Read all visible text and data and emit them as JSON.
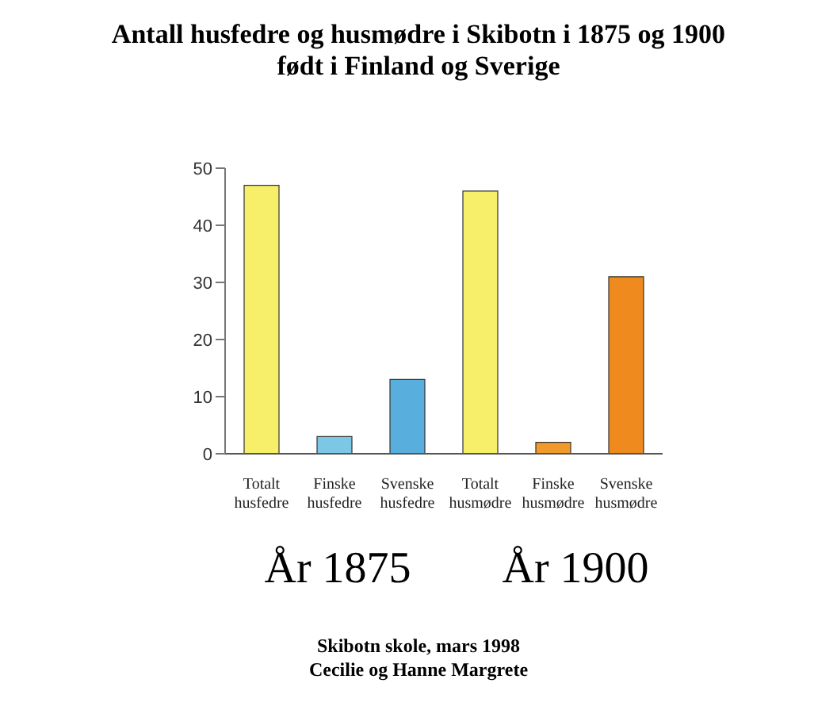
{
  "chart_data": {
    "type": "bar",
    "title": "Antall husfedre og husmødre i Skibotn i 1875 og 1900\nfødt i Finland og Sverige",
    "categories": [
      "Totalt husfedre",
      "Finske husfedre",
      "Svenske husfedre",
      "Totalt husmødre",
      "Finske husmødre",
      "Svenske husmødre"
    ],
    "values": [
      47,
      3,
      13,
      46,
      2,
      31
    ],
    "colors": [
      "#f7ef6a",
      "#7cc6e6",
      "#58aedc",
      "#f7ef6a",
      "#f09a2c",
      "#ee8a1e"
    ],
    "ylim": [
      0,
      50
    ],
    "yticks": [
      0,
      10,
      20,
      30,
      40,
      50
    ],
    "grid": false,
    "annotations": [
      "År 1875",
      "År 1900",
      "Skibotn skole, mars 1998",
      "Cecilie og Hanne Margrete"
    ]
  }
}
